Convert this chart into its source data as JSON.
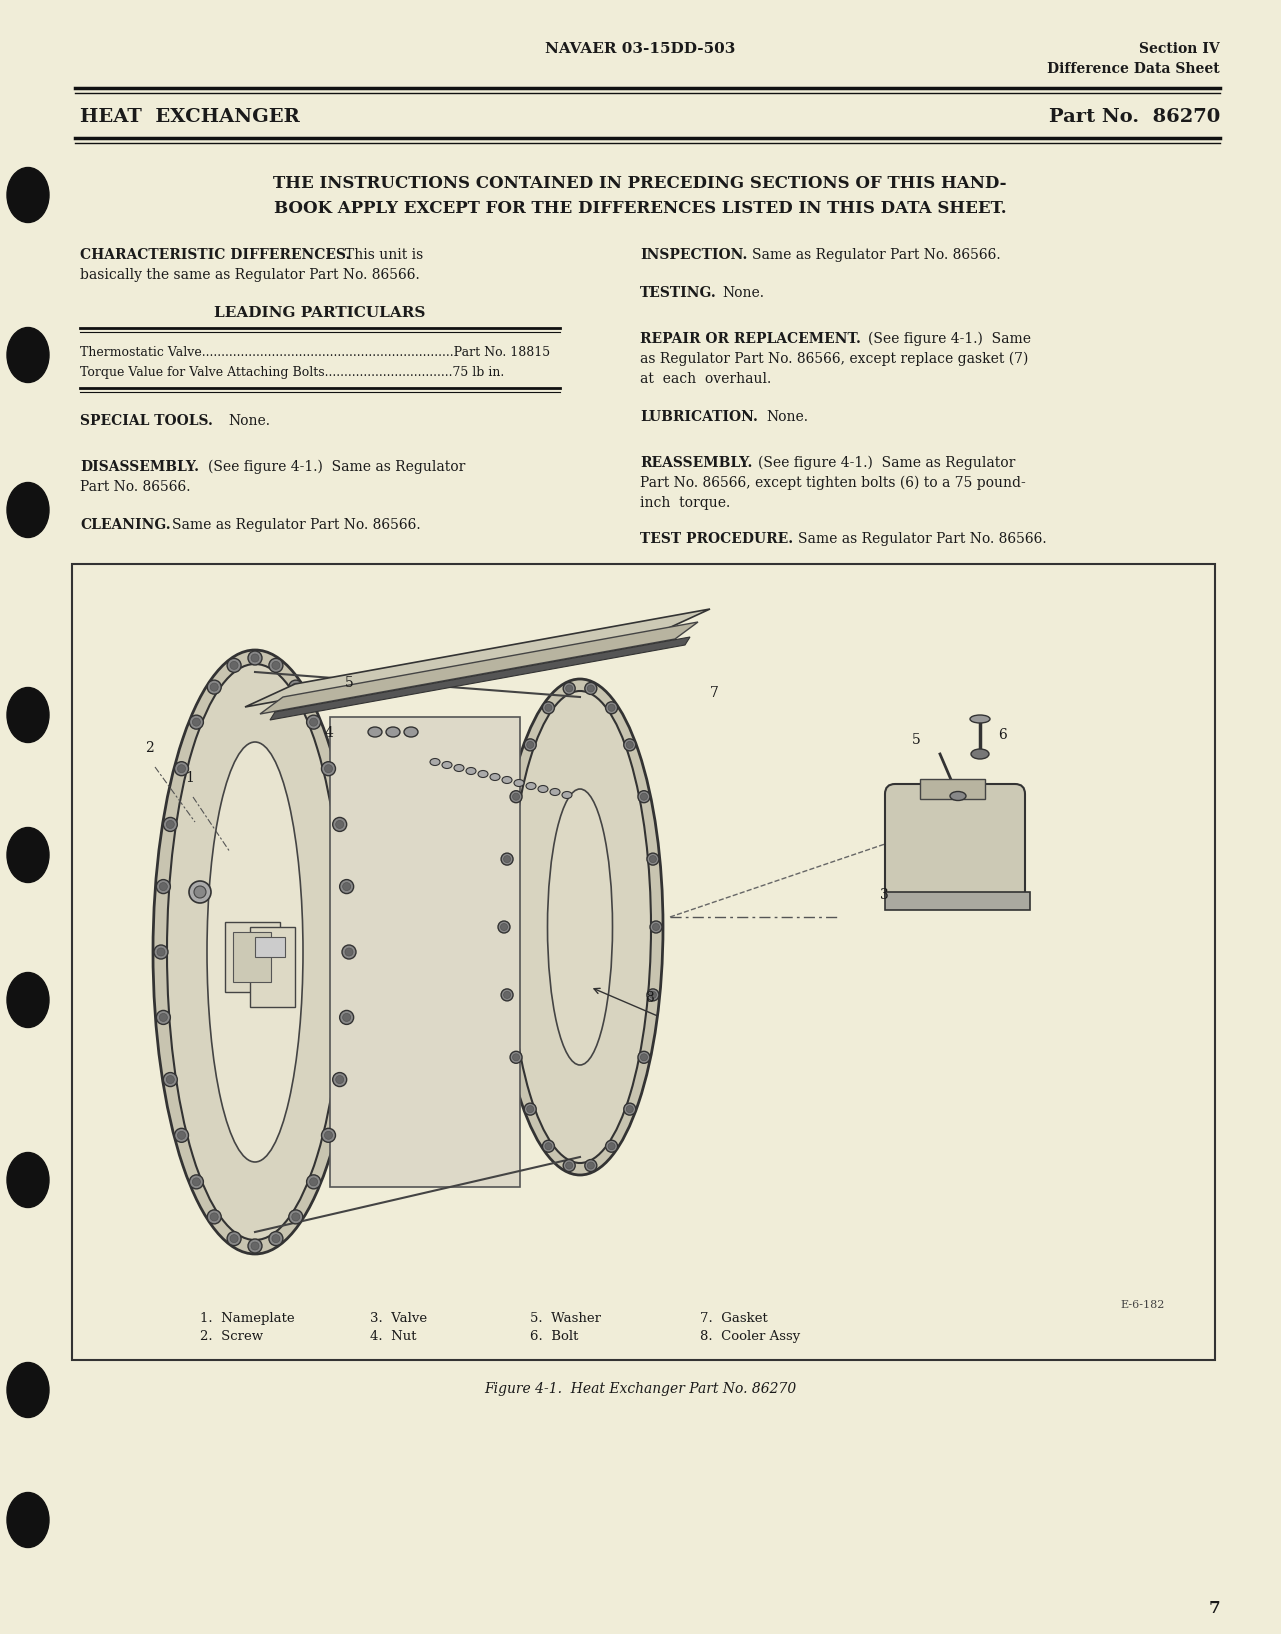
{
  "bg_color": "#f0edd8",
  "text_color": "#1a1a1a",
  "header_center": "NAVAER 03-15DD-503",
  "header_right_line1": "Section IV",
  "header_right_line2": "Difference Data Sheet",
  "title_left": "HEAT  EXCHANGER",
  "title_right": "Part No.  86270",
  "intro_line1": "THE INSTRUCTIONS CONTAINED IN PRECEDING SECTIONS OF THIS HAND-",
  "intro_line2": "BOOK APPLY EXCEPT FOR THE DIFFERENCES LISTED IN THIS DATA SHEET.",
  "leading_particulars_title": "LEADING PARTICULARS",
  "lp_item1": "Thermostatic Valve.................................................................Part No. 18815",
  "lp_item2": "Torque Value for Valve Attaching Bolts.................................75 lb in.",
  "figure_caption": "Figure 4-1.  Heat Exchanger Part No. 86270",
  "figure_id": "E-6-182",
  "legend_1a": "1.  Nameplate",
  "legend_1b": "2.  Screw",
  "legend_2a": "3.  Valve",
  "legend_2b": "4.  Nut",
  "legend_3a": "5.  Washer",
  "legend_3b": "6.  Bolt",
  "legend_4a": "7.  Gasket",
  "legend_4b": "8.  Cooler Assy",
  "page_number": "7"
}
